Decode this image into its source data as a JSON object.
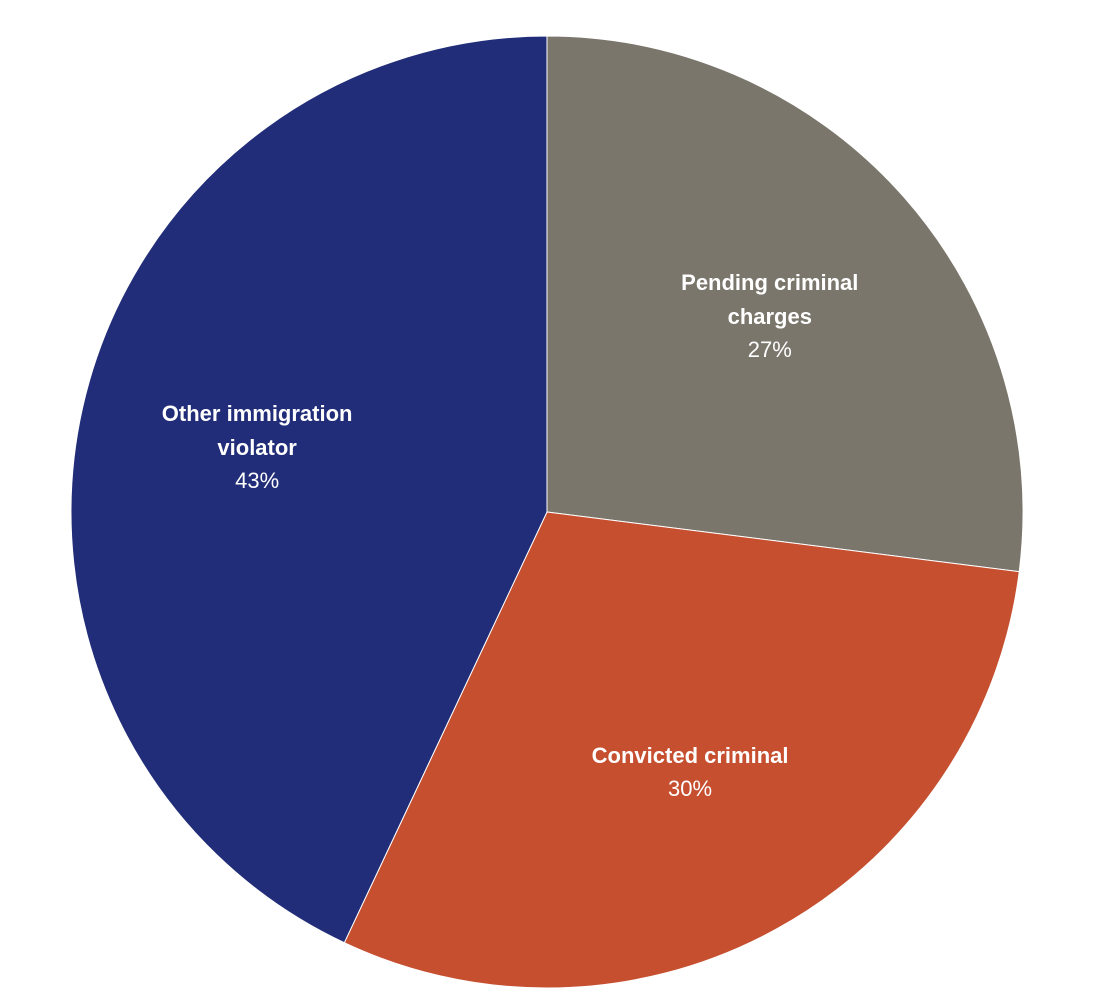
{
  "chart_data": {
    "type": "pie",
    "categories": [
      "Pending criminal charges",
      "Convicted criminal",
      "Other immigration violator"
    ],
    "values": [
      27,
      30,
      43
    ],
    "value_labels": [
      "27%",
      "30%",
      "43%"
    ],
    "colors": [
      "#7b766c",
      "#c54f2f",
      "#212d78"
    ]
  }
}
